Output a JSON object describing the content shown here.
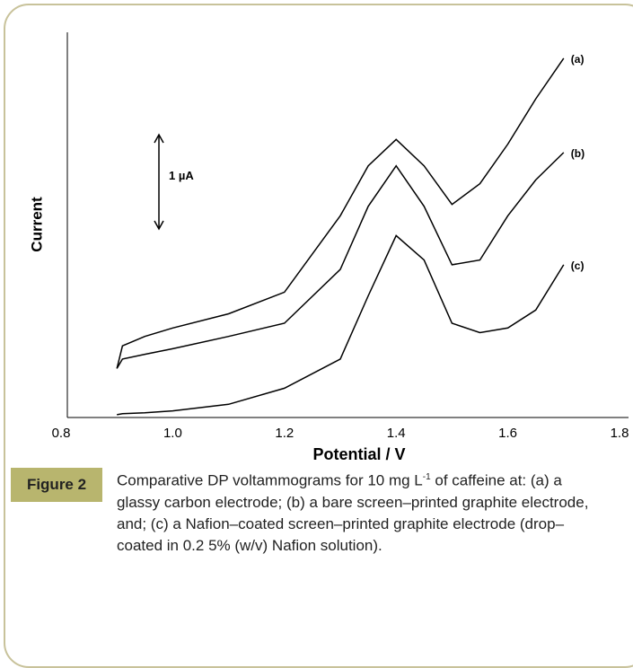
{
  "chart_data": {
    "type": "line",
    "x_label": "Potential / V",
    "y_label": "Current",
    "xlim": [
      0.8,
      1.8
    ],
    "xticks": [
      {
        "value": 0.8,
        "label": "0.8"
      },
      {
        "value": 1.0,
        "label": "1.0"
      },
      {
        "value": 1.2,
        "label": "1.2"
      },
      {
        "value": 1.4,
        "label": "1.4"
      },
      {
        "value": 1.6,
        "label": "1.6"
      },
      {
        "value": 1.8,
        "label": "1.8"
      }
    ],
    "ylim": [
      0,
      4
    ],
    "grid": false,
    "scale_bar": {
      "value": 1,
      "label": "1 µA"
    },
    "x": [
      0.9,
      0.91,
      0.95,
      1.0,
      1.1,
      1.2,
      1.3,
      1.35,
      1.4,
      1.45,
      1.5,
      1.55,
      1.6,
      1.65,
      1.7
    ],
    "series": [
      {
        "name": "(a)",
        "color": "#000000",
        "values": [
          0.52,
          0.76,
          0.86,
          0.95,
          1.1,
          1.33,
          2.14,
          2.67,
          2.95,
          2.67,
          2.26,
          2.48,
          2.9,
          3.38,
          3.81
        ]
      },
      {
        "name": "(b)",
        "color": "#000000",
        "values": [
          0.52,
          0.62,
          0.67,
          0.73,
          0.86,
          1.0,
          1.57,
          2.24,
          2.67,
          2.24,
          1.62,
          1.67,
          2.14,
          2.52,
          2.81
        ]
      },
      {
        "name": "(c)",
        "color": "#000000",
        "values": [
          0.03,
          0.04,
          0.05,
          0.07,
          0.14,
          0.31,
          0.62,
          1.29,
          1.93,
          1.67,
          1.0,
          0.9,
          0.95,
          1.14,
          1.62
        ]
      }
    ]
  },
  "caption": {
    "label": "Figure 2",
    "text_before": "Comparative DP voltammograms for 10 mg L",
    "superscript": "-1",
    "text_after": " of caffeine at: (a) a glassy carbon electrode; (b) a bare screen–printed graphite electrode, and; (c) a Nafion–coated screen–printed graphite electrode (drop–coated in 0.2 5% (w/v) Nafion solution)."
  }
}
